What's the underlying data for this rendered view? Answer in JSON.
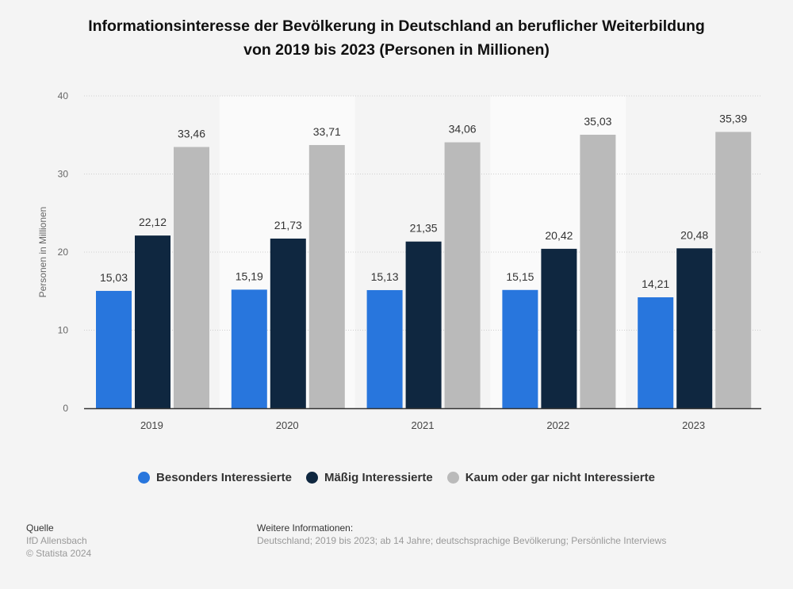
{
  "chart_data": {
    "type": "bar",
    "title": "Informationsinteresse der Bevölkerung in Deutschland an beruflicher Weiterbildung von 2019 bis 2023 (Personen in Millionen)",
    "title_lines": [
      "Informationsinteresse der Bevölkerung in Deutschland an beruflicher Weiterbildung",
      "von 2019 bis 2023 (Personen in Millionen)"
    ],
    "ylabel": "Personen in Millionen",
    "xlabel": "",
    "ylim": [
      0,
      40
    ],
    "yticks": [
      "0",
      "10",
      "20",
      "30",
      "40"
    ],
    "grid": true,
    "legend_position": "bottom",
    "categories": [
      "2019",
      "2020",
      "2021",
      "2022",
      "2023"
    ],
    "series": [
      {
        "name": "Besonders Interessierte",
        "color": "#2876dd",
        "values": [
          15.03,
          15.19,
          15.13,
          15.15,
          14.21
        ],
        "labels": [
          "15,03",
          "15,19",
          "15,13",
          "15,15",
          "14,21"
        ]
      },
      {
        "name": "Mäßig Interessierte",
        "color": "#0f2740",
        "values": [
          22.12,
          21.73,
          21.35,
          20.42,
          20.48
        ],
        "labels": [
          "22,12",
          "21,73",
          "21,35",
          "20,42",
          "20,48"
        ]
      },
      {
        "name": "Kaum oder gar nicht Interessierte",
        "color": "#bababa",
        "values": [
          33.46,
          33.71,
          34.06,
          35.03,
          35.39
        ],
        "labels": [
          "33,46",
          "33,71",
          "34,06",
          "35,03",
          "35,39"
        ]
      }
    ]
  },
  "footer": {
    "source_heading": "Quelle",
    "source": "IfD Allensbach",
    "copyright": "© Statista 2024",
    "info_heading": "Weitere Informationen:",
    "info": "Deutschland; 2019 bis 2023; ab 14 Jahre; deutschsprachige Bevölkerung; Persönliche Interviews"
  }
}
